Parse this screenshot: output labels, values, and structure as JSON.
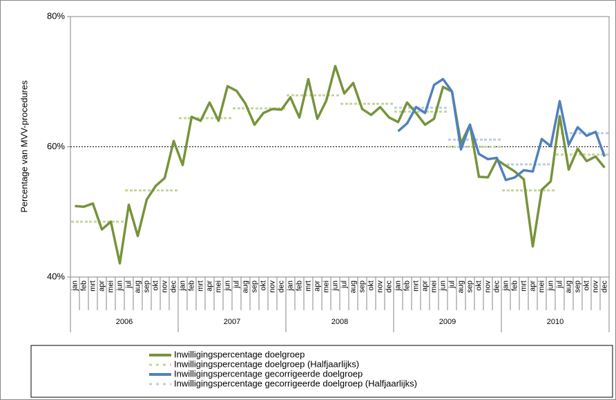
{
  "chart_data": {
    "type": "line",
    "y_axis_label": "Percentage van MVV-procedures",
    "categories": [
      "jan",
      "feb",
      "mrt",
      "apr",
      "mei",
      "jun",
      "jul",
      "aug",
      "sep",
      "okt",
      "nov",
      "dec",
      "jan",
      "feb",
      "mrt",
      "apr",
      "mei",
      "jun",
      "jul",
      "aug",
      "sep",
      "okt",
      "nov",
      "dec",
      "jan",
      "feb",
      "mrt",
      "apr",
      "mei",
      "jun",
      "jul",
      "aug",
      "sep",
      "okt",
      "nov",
      "dec",
      "jan",
      "feb",
      "mrt",
      "apr",
      "mei",
      "jun",
      "jul",
      "aug",
      "sep",
      "okt",
      "nov",
      "dec",
      "jan",
      "feb",
      "mrt",
      "apr",
      "mei",
      "jun",
      "jul",
      "aug",
      "sep",
      "okt",
      "nov",
      "dec"
    ],
    "groups": [
      "2006",
      "2007",
      "2008",
      "2009",
      "2010"
    ],
    "ylim": [
      40,
      80
    ],
    "yticks": [
      {
        "value": 40,
        "label": "40%"
      },
      {
        "value": 60,
        "label": "60%"
      },
      {
        "value": 80,
        "label": "80%"
      }
    ],
    "grid": "dashed",
    "series": [
      {
        "name": "Inwilligingspercentage doelgroep",
        "color": "#77933c",
        "style": "solid",
        "values": [
          50.9,
          50.8,
          51.3,
          47.3,
          48.5,
          42.1,
          51.1,
          46.3,
          51.9,
          54.0,
          55.2,
          60.9,
          57.2,
          64.6,
          64.0,
          66.8,
          64.0,
          69.3,
          68.6,
          66.6,
          63.4,
          65.2,
          65.8,
          65.7,
          67.6,
          64.5,
          70.4,
          64.3,
          67.1,
          72.4,
          68.2,
          69.8,
          65.8,
          64.9,
          66.1,
          64.5,
          63.8,
          66.8,
          65.2,
          63.4,
          64.3,
          69.2,
          68.5,
          60.5,
          63.4,
          55.4,
          55.3,
          58.0,
          57.1,
          56.2,
          55.0,
          44.7,
          53.4,
          54.7,
          64.7,
          56.5,
          59.7,
          57.8,
          58.5,
          56.8
        ]
      },
      {
        "name": "Inwilligingspercentage doelgroep (Halfjaarlijks)",
        "color": "#c3d69b",
        "style": "dashed",
        "values": [
          48.5,
          48.5,
          48.5,
          48.5,
          48.5,
          48.5,
          53.3,
          53.3,
          53.3,
          53.3,
          53.3,
          53.3,
          64.4,
          64.4,
          64.4,
          64.4,
          64.4,
          64.4,
          65.9,
          65.9,
          65.9,
          65.9,
          65.9,
          65.9,
          67.9,
          67.9,
          67.9,
          67.9,
          67.9,
          67.9,
          66.6,
          66.6,
          66.6,
          66.6,
          66.6,
          66.6,
          65.4,
          65.4,
          65.4,
          65.4,
          65.4,
          65.4,
          60.0,
          60.0,
          60.0,
          60.0,
          60.0,
          60.0,
          53.3,
          53.3,
          53.3,
          53.3,
          53.3,
          53.3,
          58.8,
          58.8,
          58.8,
          58.8,
          58.8,
          58.8
        ]
      },
      {
        "name": "Inwilligingspercentage gecorrigeerde doelgroep",
        "color": "#4f81bd",
        "style": "solid",
        "values": [
          null,
          null,
          null,
          null,
          null,
          null,
          null,
          null,
          null,
          null,
          null,
          null,
          null,
          null,
          null,
          null,
          null,
          null,
          null,
          null,
          null,
          null,
          null,
          null,
          null,
          null,
          null,
          null,
          null,
          null,
          null,
          null,
          null,
          null,
          null,
          null,
          62.4,
          63.6,
          66.1,
          65.2,
          69.5,
          70.4,
          68.5,
          59.6,
          63.4,
          58.9,
          58.1,
          58.3,
          54.9,
          55.3,
          56.4,
          56.2,
          61.2,
          60.1,
          67.0,
          60.3,
          63.0,
          61.7,
          62.3,
          58.5
        ]
      },
      {
        "name": "Inwilligingspercentage gecorrigeerde doelgroep (Halfjaarlijks)",
        "color": "#b9cde5",
        "style": "dashed",
        "values": [
          null,
          null,
          null,
          null,
          null,
          null,
          null,
          null,
          null,
          null,
          null,
          null,
          null,
          null,
          null,
          null,
          null,
          null,
          null,
          null,
          null,
          null,
          null,
          null,
          null,
          null,
          null,
          null,
          null,
          null,
          null,
          null,
          null,
          null,
          null,
          null,
          66.0,
          66.0,
          66.0,
          66.0,
          66.0,
          66.0,
          61.1,
          61.1,
          61.1,
          61.1,
          61.1,
          61.1,
          57.3,
          57.3,
          57.3,
          57.3,
          57.3,
          57.3,
          62.1,
          62.1,
          62.1,
          62.1,
          62.1,
          62.1
        ]
      }
    ]
  }
}
